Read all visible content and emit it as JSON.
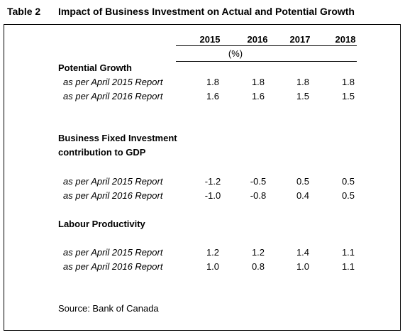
{
  "table": {
    "number": "Table 2",
    "title": "Impact of Business Investment on Actual and Potential Growth",
    "years": [
      "2015",
      "2016",
      "2017",
      "2018"
    ],
    "unit": "(%)",
    "sections": [
      {
        "heading": [
          "Potential Growth"
        ],
        "rows": [
          {
            "label": "as per April 2015 Report",
            "values": [
              "1.8",
              "1.8",
              "1.8",
              "1.8"
            ]
          },
          {
            "label": "as per April 2016 Report",
            "values": [
              "1.6",
              "1.6",
              "1.5",
              "1.5"
            ]
          }
        ]
      },
      {
        "heading": [
          "Business Fixed Investment",
          "contribution to GDP"
        ],
        "rows": [
          {
            "label": "as per April 2015 Report",
            "values": [
              "-1.2",
              "-0.5",
              "0.5",
              "0.5"
            ]
          },
          {
            "label": "as per April 2016 Report",
            "values": [
              "-1.0",
              "-0.8",
              "0.4",
              "0.5"
            ]
          }
        ]
      },
      {
        "heading": [
          "Labour Productivity"
        ],
        "rows": [
          {
            "label": "as per April 2015 Report",
            "values": [
              "1.2",
              "1.2",
              "1.4",
              "1.1"
            ]
          },
          {
            "label": "as per April 2016 Report",
            "values": [
              "1.0",
              "0.8",
              "1.0",
              "1.1"
            ]
          }
        ]
      }
    ],
    "source": "Source: Bank of  Canada"
  }
}
